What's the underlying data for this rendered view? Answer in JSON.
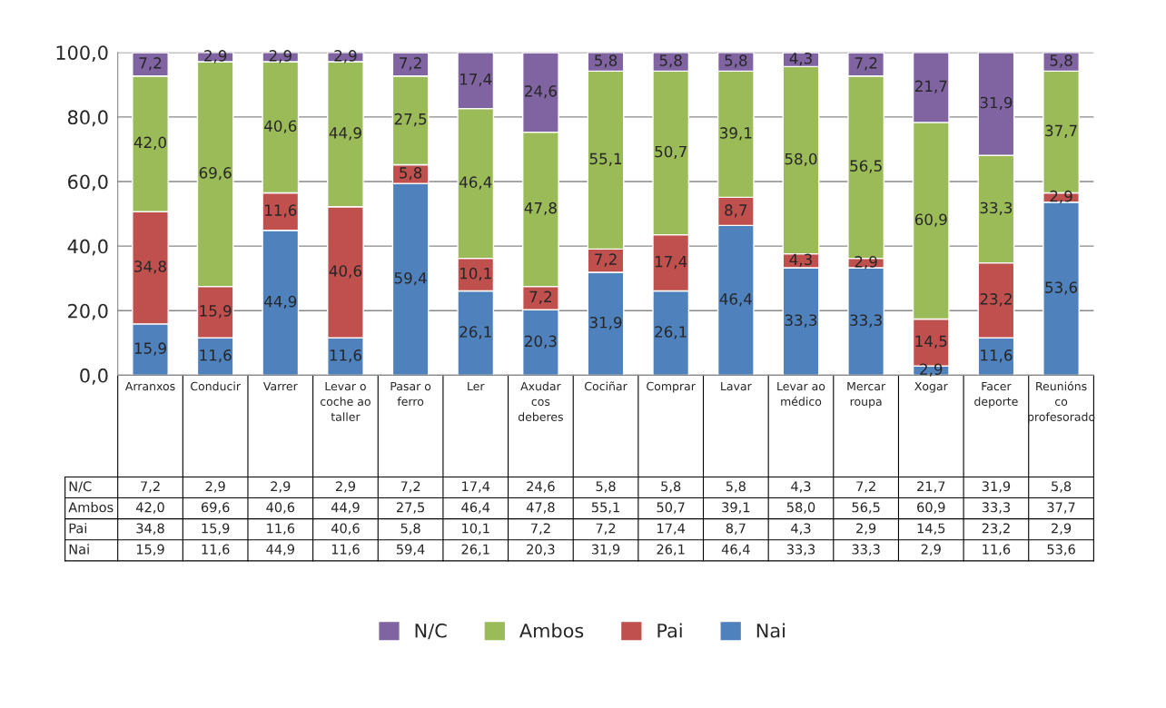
{
  "chart_data": {
    "type": "bar",
    "stacked": true,
    "categories": [
      "Arranxos",
      "Conducir",
      "Varrer",
      "Levar o coche ao taller",
      "Pasar o ferro",
      "Ler",
      "Axudar cos deberes",
      "Cociñar",
      "Comprar",
      "Lavar",
      "Levar ao médico",
      "Mercar roupa",
      "Xogar",
      "Facer deporte",
      "Reunións co profesorado"
    ],
    "series": [
      {
        "name": "Nai",
        "color": "#4f81bd",
        "values": [
          15.9,
          11.6,
          44.9,
          11.6,
          59.4,
          26.1,
          20.3,
          31.9,
          26.1,
          46.4,
          33.3,
          33.3,
          2.9,
          11.6,
          53.6
        ],
        "value_labels": [
          "15,9",
          "11,6",
          "44,9",
          "11,6",
          "59,4",
          "26,1",
          "20,3",
          "31,9",
          "26,1",
          "46,4",
          "33,3",
          "33,3",
          "2,9",
          "11,6",
          "53,6"
        ]
      },
      {
        "name": "Pai",
        "color": "#c0504d",
        "values": [
          34.8,
          15.9,
          11.6,
          40.6,
          5.8,
          10.1,
          7.2,
          7.2,
          17.4,
          8.7,
          4.3,
          2.9,
          14.5,
          23.2,
          2.9
        ],
        "value_labels": [
          "34,8",
          "15,9",
          "11,6",
          "40,6",
          "5,8",
          "10,1",
          "7,2",
          "7,2",
          "17,4",
          "8,7",
          "4,3",
          "2,9",
          "14,5",
          "23,2",
          "2,9"
        ]
      },
      {
        "name": "Ambos",
        "color": "#9bbb59",
        "values": [
          42.0,
          69.6,
          40.6,
          44.9,
          27.5,
          46.4,
          47.8,
          55.1,
          50.7,
          39.1,
          58.0,
          56.5,
          60.9,
          33.3,
          37.7
        ],
        "value_labels": [
          "42,0",
          "69,6",
          "40,6",
          "44,9",
          "27,5",
          "46,4",
          "47,8",
          "55,1",
          "50,7",
          "39,1",
          "58,0",
          "56,5",
          "60,9",
          "33,3",
          "37,7"
        ]
      },
      {
        "name": "N/C",
        "color": "#8064a2",
        "values": [
          7.2,
          2.9,
          2.9,
          2.9,
          7.2,
          17.4,
          24.6,
          5.8,
          5.8,
          5.8,
          4.3,
          7.2,
          21.7,
          31.9,
          5.8
        ],
        "value_labels": [
          "7,2",
          "2,9",
          "2,9",
          "2,9",
          "7,2",
          "17,4",
          "24,6",
          "5,8",
          "5,8",
          "5,8",
          "4,3",
          "7,2",
          "21,7",
          "31,9",
          "5,8"
        ]
      }
    ],
    "ylim": [
      0,
      100
    ],
    "yticks": [
      {
        "value": 0,
        "label": "0,0"
      },
      {
        "value": 20,
        "label": "20,0"
      },
      {
        "value": 40,
        "label": "40,0"
      },
      {
        "value": 60,
        "label": "60,0"
      },
      {
        "value": 80,
        "label": "80,0"
      },
      {
        "value": 100,
        "label": "100,0"
      }
    ],
    "grid": "y",
    "legend": "bottom"
  }
}
